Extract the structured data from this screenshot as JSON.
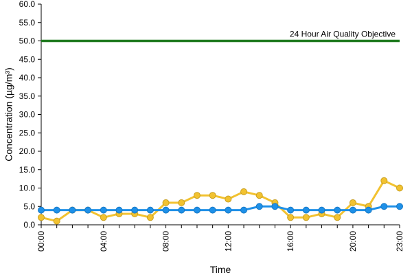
{
  "chart_data": {
    "type": "line",
    "xlabel": "Time",
    "ylabel": "Concentration (µg/m³)",
    "ylim": [
      0,
      60
    ],
    "y_ticks": [
      "0.0",
      "5.0",
      "10.0",
      "15.0",
      "20.0",
      "25.0",
      "30.0",
      "35.0",
      "40.0",
      "45.0",
      "50.0",
      "55.0",
      "60.0"
    ],
    "x": [
      "00:00",
      "01:00",
      "02:00",
      "03:00",
      "04:00",
      "05:00",
      "06:00",
      "07:00",
      "08:00",
      "09:00",
      "10:00",
      "11:00",
      "12:00",
      "13:00",
      "14:00",
      "15:00",
      "16:00",
      "17:00",
      "18:00",
      "19:00",
      "20:00",
      "21:00",
      "22:00",
      "23:00"
    ],
    "x_tick_labels": [
      "00:00",
      "04:00",
      "08:00",
      "12:00",
      "16:00",
      "20:00",
      "23:00"
    ],
    "grid": false,
    "series": [
      {
        "color": "#f2c230",
        "values": [
          2,
          1,
          4,
          4,
          2,
          3,
          3,
          2,
          6,
          6,
          8,
          8,
          7,
          9,
          8,
          6,
          2,
          2,
          3,
          2,
          6,
          5,
          12,
          10
        ]
      },
      {
        "color": "#1e90e8",
        "values": [
          4,
          4,
          4,
          4,
          4,
          4,
          4,
          4,
          4,
          4,
          4,
          4,
          4,
          4,
          5,
          5,
          4,
          4,
          4,
          4,
          4,
          4,
          5,
          5
        ]
      }
    ],
    "reference_line": {
      "label": "24 Hour Air Quality Objective",
      "value": 50,
      "color": "#1f7a1f"
    }
  }
}
